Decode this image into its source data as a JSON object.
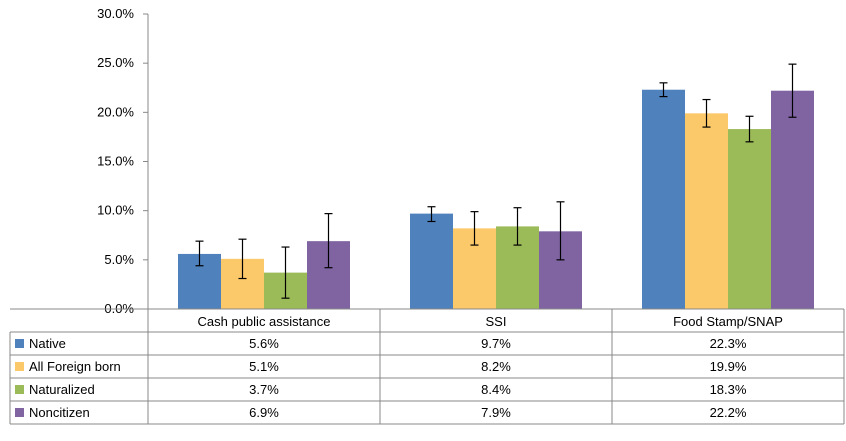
{
  "chart_data": {
    "type": "bar",
    "categories": [
      "Cash public assistance",
      "SSI",
      "Food Stamp/SNAP"
    ],
    "series": [
      {
        "name": "Native",
        "color": "#4f81bd",
        "values": [
          5.6,
          9.7,
          22.3
        ],
        "labels": [
          "5.6%",
          "9.7%",
          "22.3%"
        ],
        "error_low": [
          4.4,
          8.9,
          21.6
        ],
        "error_high": [
          6.9,
          10.4,
          23.0
        ]
      },
      {
        "name": "All Foreign born",
        "color": "#fcc96a",
        "values": [
          5.1,
          8.2,
          19.9
        ],
        "labels": [
          "5.1%",
          "8.2%",
          "19.9%"
        ],
        "error_low": [
          3.1,
          6.5,
          18.5
        ],
        "error_high": [
          7.1,
          9.9,
          21.3
        ]
      },
      {
        "name": "Naturalized",
        "color": "#9bbb59",
        "values": [
          3.7,
          8.4,
          18.3
        ],
        "labels": [
          "3.7%",
          "8.4%",
          "18.3%"
        ],
        "error_low": [
          1.1,
          6.5,
          17.0
        ],
        "error_high": [
          6.3,
          10.3,
          19.6
        ]
      },
      {
        "name": "Noncitizen",
        "color": "#8064a2",
        "values": [
          6.9,
          7.9,
          22.2
        ],
        "labels": [
          "6.9%",
          "7.9%",
          "22.2%"
        ],
        "error_low": [
          4.2,
          5.0,
          19.5
        ],
        "error_high": [
          9.7,
          10.9,
          24.9
        ]
      }
    ],
    "ylim": [
      0,
      30
    ],
    "yticks": [
      "0.0%",
      "5.0%",
      "10.0%",
      "15.0%",
      "20.0%",
      "25.0%",
      "30.0%"
    ],
    "grid": false,
    "legend": "data-table"
  }
}
